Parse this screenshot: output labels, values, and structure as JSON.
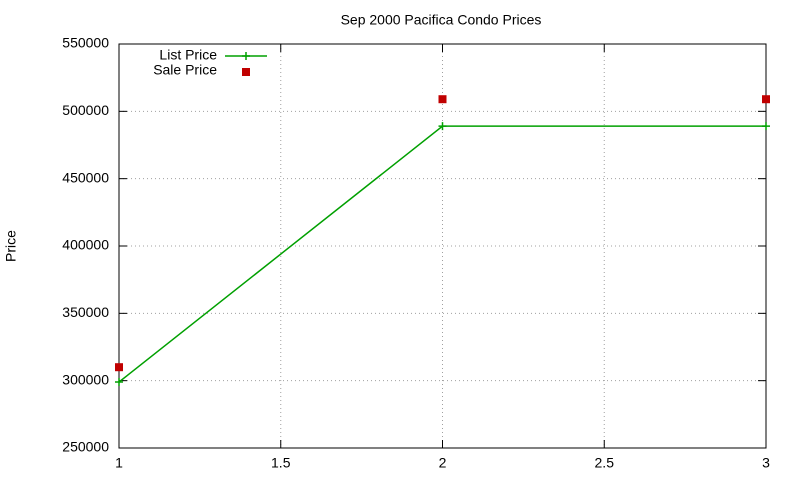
{
  "chart_data": {
    "type": "line",
    "title": "Sep 2000 Pacifica Condo Prices",
    "y_label": "Price",
    "x": [
      1,
      2,
      3
    ],
    "series": [
      {
        "name": "List Price",
        "color": "#00a000",
        "marker": "plus",
        "line": true,
        "values": [
          299000,
          489000,
          489000
        ]
      },
      {
        "name": "Sale Price",
        "color": "#c00000",
        "marker": "square",
        "line": false,
        "values": [
          310000,
          509000,
          509000
        ]
      }
    ],
    "xlim": [
      1,
      3
    ],
    "xticks": [
      1,
      1.5,
      2,
      2.5,
      3
    ],
    "ylim": [
      250000,
      550000
    ],
    "yticks": [
      250000,
      300000,
      350000,
      400000,
      450000,
      500000,
      550000
    ],
    "grid": true,
    "legend": "top-left"
  }
}
